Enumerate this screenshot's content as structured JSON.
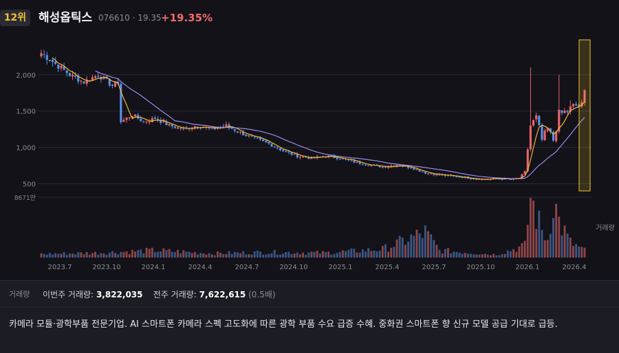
{
  "header": {
    "rank": "12위",
    "name": "해성옵틱스",
    "code_price": "076610 · 19.35",
    "change": "+19.35%"
  },
  "colors": {
    "up": "#e8646b",
    "down": "#5b8fe8",
    "ma_short": "#f2b935",
    "ma_long": "#9b8cf0",
    "highlight": "#f2c230"
  },
  "chart_data": {
    "type": "candlestick",
    "y_ticks": [
      "2,000",
      "1,500",
      "1,000",
      "500"
    ],
    "y_tick_values": [
      2000,
      1500,
      1000,
      500
    ],
    "ylim": [
      400,
      2500
    ],
    "volume_max_label": "8671만",
    "volume_axis_label": "거래량",
    "x_ticks": [
      "2023.7",
      "2023.10",
      "2024.1",
      "2024.4",
      "2024.7",
      "2024.10",
      "2025.1",
      "2025.4",
      "2025.7",
      "2025.10",
      "2026.1",
      "2026.4"
    ],
    "close_anchors": [
      [
        0,
        2300
      ],
      [
        5,
        2150
      ],
      [
        10,
        2000
      ],
      [
        15,
        1900
      ],
      [
        20,
        2000
      ],
      [
        25,
        1850
      ],
      [
        27,
        1900
      ],
      [
        28,
        1350
      ],
      [
        32,
        1450
      ],
      [
        36,
        1350
      ],
      [
        40,
        1400
      ],
      [
        45,
        1300
      ],
      [
        50,
        1250
      ],
      [
        55,
        1300
      ],
      [
        60,
        1250
      ],
      [
        65,
        1300
      ],
      [
        70,
        1200
      ],
      [
        75,
        1120
      ],
      [
        80,
        1050
      ],
      [
        85,
        950
      ],
      [
        90,
        880
      ],
      [
        95,
        850
      ],
      [
        100,
        880
      ],
      [
        105,
        850
      ],
      [
        110,
        800
      ],
      [
        115,
        760
      ],
      [
        120,
        730
      ],
      [
        125,
        760
      ],
      [
        130,
        720
      ],
      [
        135,
        650
      ],
      [
        140,
        620
      ],
      [
        145,
        600
      ],
      [
        150,
        580
      ],
      [
        155,
        560
      ],
      [
        160,
        570
      ],
      [
        165,
        560
      ],
      [
        168,
        580
      ],
      [
        170,
        660
      ],
      [
        172,
        1300
      ],
      [
        174,
        1400
      ],
      [
        176,
        1100
      ],
      [
        178,
        1250
      ],
      [
        180,
        1100
      ],
      [
        182,
        1450
      ],
      [
        185,
        1500
      ],
      [
        188,
        1580
      ],
      [
        190,
        1560
      ],
      [
        191,
        1750
      ]
    ],
    "spikes": [
      [
        172,
        2100
      ],
      [
        182,
        2000
      ],
      [
        186,
        1650
      ]
    ],
    "volume_anchors": [
      [
        0,
        0.06
      ],
      [
        20,
        0.08
      ],
      [
        40,
        0.12
      ],
      [
        60,
        0.07
      ],
      [
        80,
        0.09
      ],
      [
        100,
        0.08
      ],
      [
        120,
        0.14
      ],
      [
        135,
        0.42
      ],
      [
        140,
        0.12
      ],
      [
        160,
        0.05
      ],
      [
        170,
        0.2
      ],
      [
        172,
        1.0
      ],
      [
        174,
        0.7
      ],
      [
        176,
        0.45
      ],
      [
        178,
        0.3
      ],
      [
        180,
        1.0
      ],
      [
        182,
        0.6
      ],
      [
        186,
        0.25
      ],
      [
        191,
        0.12
      ]
    ],
    "highlight_last_week": true
  },
  "volume_summary": {
    "label": "거래량",
    "this_week_label": "이번주 거래량:",
    "this_week_value": "3,822,035",
    "last_week_label": "전주 거래량:",
    "last_week_value": "7,622,615",
    "ratio": "(0.5배)"
  },
  "description": "카메라 모듈·광학부품 전문기업. AI 스마트폰 카메라 스펙 고도화에 따른 광학 부품 수요 급증 수혜. 중화권 스마트폰 향 신규 모델 공급 기대로 급등."
}
